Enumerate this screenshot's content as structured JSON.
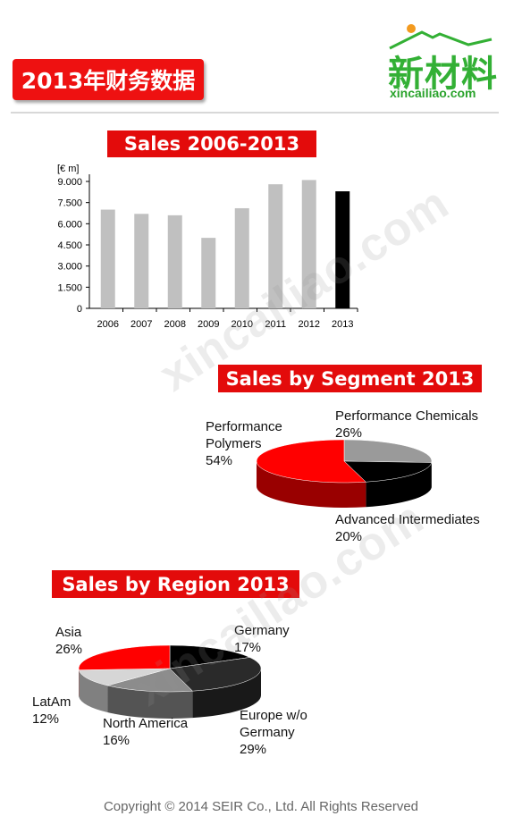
{
  "page_title": "2013年财务数据",
  "logo": {
    "main": "新材料",
    "sub": "xincailiao.com"
  },
  "watermark": "xincailiao.com",
  "footer": "Copyright © 2014  SEIR Co., Ltd. All Rights Reserved",
  "colors": {
    "accent_red": "#e30b0b",
    "bar_gray": "#c0c0c0",
    "bar_highlight": "#000000",
    "logo_green": "#33b035"
  },
  "chart_data": [
    {
      "type": "bar",
      "title": "Sales 2006-2013",
      "ylabel": "[€ m]",
      "categories": [
        "2006",
        "2007",
        "2008",
        "2009",
        "2010",
        "2011",
        "2012",
        "2013"
      ],
      "values": [
        7000,
        6700,
        6600,
        5000,
        7100,
        8800,
        9100,
        8300
      ],
      "highlight": "2013",
      "ylim": [
        0,
        9000
      ],
      "yticks": [
        "0",
        "1.500",
        "3.000",
        "4.500",
        "6.000",
        "7.500",
        "9.000"
      ],
      "ytick_values": [
        0,
        1500,
        3000,
        4500,
        6000,
        7500,
        9000
      ],
      "grid": false
    },
    {
      "type": "pie",
      "title": "Sales by Segment 2013",
      "slices": [
        {
          "label": "Performance Polymers",
          "pct": "54%",
          "value": 54,
          "color": "#ff0000"
        },
        {
          "label": "Performance Chemicals",
          "pct": "26%",
          "value": 26,
          "color": "#9a9a9a"
        },
        {
          "label": "Advanced Intermediates",
          "pct": "20%",
          "value": 20,
          "color": "#000000"
        }
      ]
    },
    {
      "type": "pie",
      "title": "Sales by Region 2013",
      "slices": [
        {
          "label": "Asia",
          "pct": "26%",
          "value": 26,
          "color": "#ff0000"
        },
        {
          "label": "Germany",
          "pct": "17%",
          "value": 17,
          "color": "#000000"
        },
        {
          "label": "Europe w/o Germany",
          "pct": "29%",
          "value": 29,
          "color": "#2a2a2a"
        },
        {
          "label": "North America",
          "pct": "16%",
          "value": 16,
          "color": "#8c8c8c"
        },
        {
          "label": "LatAm",
          "pct": "12%",
          "value": 12,
          "color": "#d6d6d6"
        }
      ]
    }
  ]
}
